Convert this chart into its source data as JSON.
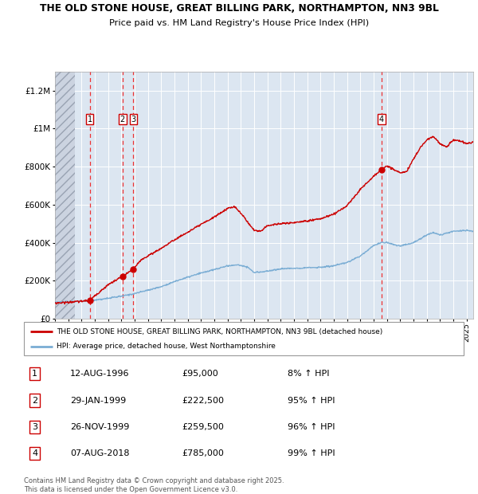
{
  "title_line1": "THE OLD STONE HOUSE, GREAT BILLING PARK, NORTHAMPTON, NN3 9BL",
  "title_line2": "Price paid vs. HM Land Registry's House Price Index (HPI)",
  "ylim": [
    0,
    1300000
  ],
  "xlim_start": 1994.0,
  "xlim_end": 2025.5,
  "background_color": "#dce6f1",
  "grid_color": "#ffffff",
  "red_line_color": "#cc0000",
  "blue_line_color": "#7aadd4",
  "dashed_line_color": "#ee3333",
  "sale_dates_year": [
    1996.617,
    1999.08,
    1999.9,
    2018.6
  ],
  "sale_prices": [
    95000,
    222500,
    259500,
    785000
  ],
  "sale_labels": [
    "1",
    "2",
    "3",
    "4"
  ],
  "legend_red": "THE OLD STONE HOUSE, GREAT BILLING PARK, NORTHAMPTON, NN3 9BL (detached house)",
  "legend_blue": "HPI: Average price, detached house, West Northamptonshire",
  "table_rows": [
    [
      "1",
      "12-AUG-1996",
      "£95,000",
      "8% ↑ HPI"
    ],
    [
      "2",
      "29-JAN-1999",
      "£222,500",
      "95% ↑ HPI"
    ],
    [
      "3",
      "26-NOV-1999",
      "£259,500",
      "96% ↑ HPI"
    ],
    [
      "4",
      "07-AUG-2018",
      "£785,000",
      "99% ↑ HPI"
    ]
  ],
  "footer": "Contains HM Land Registry data © Crown copyright and database right 2025.\nThis data is licensed under the Open Government Licence v3.0.",
  "hatch_end_year": 1995.5,
  "yticks": [
    0,
    200000,
    400000,
    600000,
    800000,
    1000000,
    1200000
  ],
  "ylabels": [
    "£0",
    "£200K",
    "£400K",
    "£600K",
    "£800K",
    "£1M",
    "£1.2M"
  ]
}
